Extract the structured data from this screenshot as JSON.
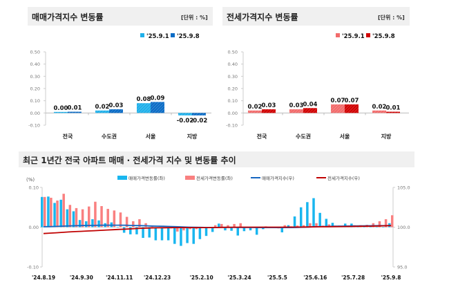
{
  "chart_data": [
    {
      "type": "bar",
      "title": "매매가격지수 변동률",
      "unit": "[단위 : %]",
      "categories": [
        "전국",
        "수도권",
        "서울",
        "지방"
      ],
      "series": [
        {
          "name": "'25.9.1",
          "values": [
            0.0,
            0.02,
            0.08,
            -0.02
          ],
          "color": "#1fb0ea"
        },
        {
          "name": "'25.9.8",
          "values": [
            0.01,
            0.03,
            0.09,
            -0.02
          ],
          "color": "#0b6cc6"
        }
      ],
      "ylim": [
        -0.1,
        0.5
      ],
      "yticks": [
        "0.50",
        "0.40",
        "0.30",
        "0.20",
        "0.10",
        "0.00",
        "-0.10"
      ],
      "legend": "top-right"
    },
    {
      "type": "bar",
      "title": "전세가격지수 변동률",
      "unit": "[단위 : %]",
      "categories": [
        "전국",
        "수도권",
        "서울",
        "지방"
      ],
      "series": [
        {
          "name": "'25.9.1",
          "values": [
            0.02,
            0.03,
            0.07,
            0.02
          ],
          "color": "#f26b6b"
        },
        {
          "name": "'25.9.8",
          "values": [
            0.03,
            0.04,
            0.07,
            0.01
          ],
          "color": "#d10000"
        }
      ],
      "ylim": [
        -0.1,
        0.5
      ],
      "yticks": [
        "0.50",
        "0.40",
        "0.30",
        "0.20",
        "0.10",
        "0.00",
        "-0.10"
      ],
      "legend": "top-right"
    },
    {
      "type": "bar+line",
      "title": "최근 1년간 전국 아파트 매매 · 전세가격 지수 및 변동률 추이",
      "ylabel_left": "(%)",
      "ylim_left": [
        -0.1,
        0.1
      ],
      "yticks_left": [
        "0.10",
        "0.00",
        "-0.10"
      ],
      "ylim_right": [
        95.0,
        105.0
      ],
      "yticks_right": [
        "105.0",
        "100.0",
        "95.0"
      ],
      "xtick_labels": [
        "'24.8.19",
        "'24.9.30",
        "'24.11.11",
        "'24.12.23",
        "'25.2.10",
        "'25.3.24",
        "'25.5.5",
        "'25.6.16",
        "'25.7.28",
        "'25.9.8"
      ],
      "legend": "top",
      "series": [
        {
          "name": "매매가격변동률(좌)",
          "kind": "bar",
          "axis": "left",
          "color": "#19b6ef",
          "values": [
            0.076,
            0.077,
            0.061,
            0.069,
            0.045,
            0.04,
            0.018,
            0.015,
            0.02,
            0.017,
            0.01,
            0.012,
            0.0,
            -0.014,
            -0.018,
            -0.018,
            -0.027,
            -0.026,
            -0.033,
            -0.033,
            -0.033,
            -0.042,
            -0.047,
            -0.04,
            -0.042,
            -0.03,
            -0.022,
            -0.012,
            0.009,
            -0.008,
            -0.009,
            -0.021,
            -0.01,
            -0.008,
            -0.019,
            -0.005,
            0.0,
            0.0,
            -0.013,
            0.005,
            0.027,
            0.05,
            0.063,
            0.073,
            0.036,
            0.021,
            0.011,
            0.004,
            0.009,
            0.009,
            0.002,
            0.002,
            0.002,
            0.001,
            0.0,
            0.01
          ]
        },
        {
          "name": "전세가격변동률(좌)",
          "kind": "bar",
          "axis": "left",
          "color": "#f98080",
          "values": [
            0.076,
            0.074,
            0.067,
            0.084,
            0.056,
            0.048,
            0.045,
            0.052,
            0.064,
            0.053,
            0.046,
            0.042,
            0.037,
            0.026,
            0.015,
            0.02,
            0.01,
            0.003,
            0.0,
            -0.003,
            -0.003,
            -0.011,
            -0.008,
            -0.005,
            -0.005,
            -0.002,
            0.0,
            0.005,
            0.008,
            0.005,
            0.008,
            0.01,
            0.001,
            0.0,
            0.0,
            0.002,
            0.0,
            -0.003,
            0.005,
            0.002,
            0.004,
            0.005,
            0.01,
            0.01,
            0.004,
            0.007,
            0.004,
            0.003,
            0.004,
            0.005,
            0.005,
            0.006,
            0.01,
            0.015,
            0.02,
            0.03
          ]
        },
        {
          "name": "매매가격지수(우)",
          "kind": "line",
          "axis": "right",
          "color": "#1565c0",
          "values": [
            100.05,
            100.07,
            100.1,
            100.13,
            100.16,
            100.18,
            100.2,
            100.22,
            100.23,
            100.24,
            100.25,
            100.25,
            100.25,
            100.24,
            100.22,
            100.2,
            100.18,
            100.15,
            100.13,
            100.11,
            100.09,
            100.06,
            100.03,
            100.0,
            99.98,
            99.97,
            99.96,
            99.96,
            99.97,
            99.97,
            99.97,
            99.96,
            99.96,
            99.96,
            99.95,
            99.95,
            99.95,
            99.95,
            99.95,
            99.95,
            99.96,
            99.99,
            100.02,
            100.06,
            100.08,
            100.1,
            100.12,
            100.13,
            100.14,
            100.15,
            100.16,
            100.17,
            100.18,
            100.19,
            100.19,
            100.2
          ]
        },
        {
          "name": "전세가격지수(우)",
          "kind": "line",
          "axis": "right",
          "color": "#c00000",
          "values": [
            99.2,
            99.25,
            99.3,
            99.35,
            99.4,
            99.44,
            99.48,
            99.52,
            99.56,
            99.6,
            99.64,
            99.68,
            99.72,
            99.76,
            99.8,
            99.84,
            99.87,
            99.9,
            99.92,
            99.93,
            99.94,
            99.95,
            99.95,
            99.95,
            99.95,
            99.95,
            99.95,
            99.96,
            99.97,
            99.98,
            99.99,
            100.0,
            100.0,
            100.0,
            100.0,
            100.0,
            100.0,
            100.0,
            100.0,
            100.01,
            100.01,
            100.02,
            100.03,
            100.04,
            100.05,
            100.06,
            100.07,
            100.08,
            100.09,
            100.1,
            100.11,
            100.12,
            100.13,
            100.15,
            100.17,
            100.2
          ]
        }
      ]
    }
  ]
}
